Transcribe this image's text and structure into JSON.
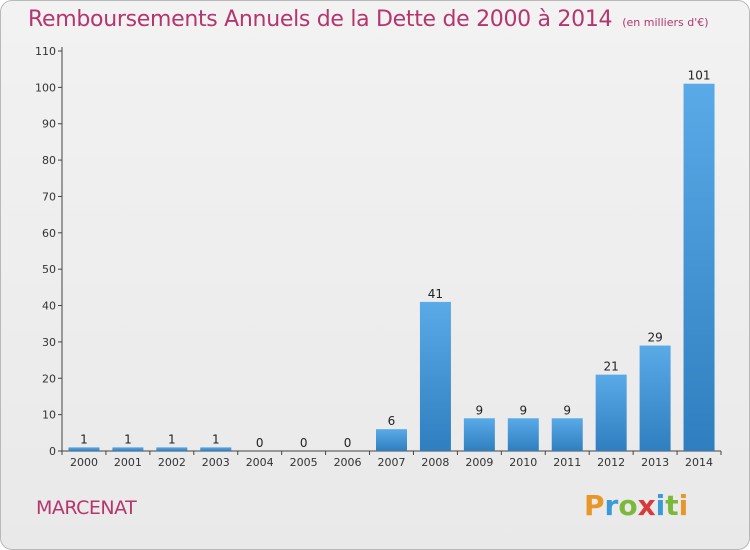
{
  "header": {
    "title": "Remboursements Annuels de la Dette de 2000 à 2014",
    "unit": "(en milliers d'€)"
  },
  "footer": {
    "commune": "MARCENAT",
    "logo": "Proxiti"
  },
  "colors": {
    "title": "#b5366e",
    "bar_light": "#5aaae8",
    "bar_dark": "#2f7fc0",
    "logo": [
      "#e8962a",
      "#3a9ad9",
      "#7cb83a",
      "#d63a3a",
      "#3a9ad9",
      "#7cb83a",
      "#e8962a"
    ]
  },
  "chart_data": {
    "type": "bar",
    "categories": [
      "2000",
      "2001",
      "2002",
      "2003",
      "2004",
      "2005",
      "2006",
      "2007",
      "2008",
      "2009",
      "2010",
      "2011",
      "2012",
      "2013",
      "2014"
    ],
    "values": [
      1,
      1,
      1,
      1,
      0,
      0,
      0,
      6,
      41,
      9,
      9,
      9,
      21,
      29,
      101
    ],
    "ylim": [
      0,
      110
    ],
    "yticks": [
      0,
      10,
      20,
      30,
      40,
      50,
      60,
      70,
      80,
      90,
      100,
      110
    ],
    "grid": false,
    "legend": "none"
  }
}
